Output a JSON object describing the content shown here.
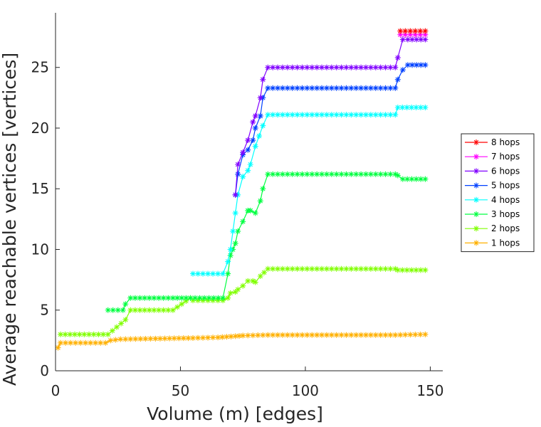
{
  "chart_data": {
    "type": "line",
    "title": "",
    "xlabel": "Volume (m) [edges]",
    "ylabel": "Average reachable vertices [vertices]",
    "xlim": [
      0,
      155
    ],
    "ylim": [
      0,
      29.5
    ],
    "xticks": [
      0,
      50,
      100,
      150
    ],
    "yticks": [
      0,
      5,
      10,
      15,
      20,
      25
    ],
    "grid": false,
    "marker": "asterisk",
    "legend_position": "right",
    "series": [
      {
        "name": "8 hops",
        "color": "#ff0000",
        "x": [
          138,
          148
        ],
        "y": [
          28,
          28
        ]
      },
      {
        "name": "7 hops",
        "color": "#ff00ff",
        "x": [
          138,
          148
        ],
        "y": [
          27.7,
          27.7
        ]
      },
      {
        "name": "6 hops",
        "color": "#8000ff",
        "x": [
          72,
          73,
          75,
          77,
          79,
          80,
          82,
          83,
          85,
          136,
          137,
          139,
          141,
          148
        ],
        "y": [
          14.5,
          17,
          18,
          19,
          20.5,
          21,
          22.5,
          24,
          25,
          25,
          25.8,
          27.3,
          27.3,
          27.3
        ]
      },
      {
        "name": "5 hops",
        "color": "#0040ff",
        "x": [
          72,
          73,
          75,
          77,
          79,
          80,
          82,
          83,
          85,
          136,
          137,
          139,
          141,
          148
        ],
        "y": [
          14.5,
          16.2,
          17.8,
          18.2,
          19,
          20,
          21,
          22.5,
          23.3,
          23.3,
          24,
          24.8,
          25.2,
          25.2
        ]
      },
      {
        "name": "4 hops",
        "color": "#00ffff",
        "x": [
          55,
          67,
          69,
          70,
          71,
          72,
          73,
          75,
          77,
          78,
          80,
          83,
          85,
          136,
          137,
          148
        ],
        "y": [
          8,
          8,
          9,
          10,
          11.5,
          13,
          14.5,
          16,
          16.5,
          17,
          18.5,
          20.2,
          21.1,
          21.1,
          21.7,
          21.7
        ]
      },
      {
        "name": "3 hops",
        "color": "#00ff40",
        "x": [
          21,
          27,
          28,
          30,
          47,
          54,
          67,
          69,
          70,
          71,
          72,
          73,
          75,
          77,
          78,
          80,
          82,
          83,
          85,
          136,
          137,
          139,
          148
        ],
        "y": [
          5,
          5,
          5.5,
          6,
          6,
          6,
          6,
          8,
          9.5,
          10,
          10.5,
          11.5,
          12.3,
          13.2,
          13.2,
          13,
          14,
          15,
          16.2,
          16.2,
          16.1,
          15.8,
          15.8
        ]
      },
      {
        "name": "2 hops",
        "color": "#80ff00",
        "x": [
          2,
          21,
          28,
          30,
          47,
          54,
          55,
          67,
          69,
          70,
          72,
          73,
          75,
          77,
          79,
          80,
          82,
          85,
          136,
          137,
          148
        ],
        "y": [
          3,
          3,
          4.2,
          5,
          5,
          6,
          5.8,
          5.8,
          6,
          6.4,
          6.5,
          6.7,
          7,
          7.4,
          7.4,
          7.3,
          7.8,
          8.4,
          8.4,
          8.3,
          8.3
        ]
      },
      {
        "name": "1 hops",
        "color": "#ffb000",
        "x": [
          1,
          2,
          20,
          22,
          26,
          40,
          55,
          65,
          72,
          75,
          85,
          136,
          148
        ],
        "y": [
          1.9,
          2.3,
          2.3,
          2.5,
          2.6,
          2.65,
          2.7,
          2.75,
          2.85,
          2.9,
          2.95,
          2.95,
          3
        ]
      }
    ]
  }
}
